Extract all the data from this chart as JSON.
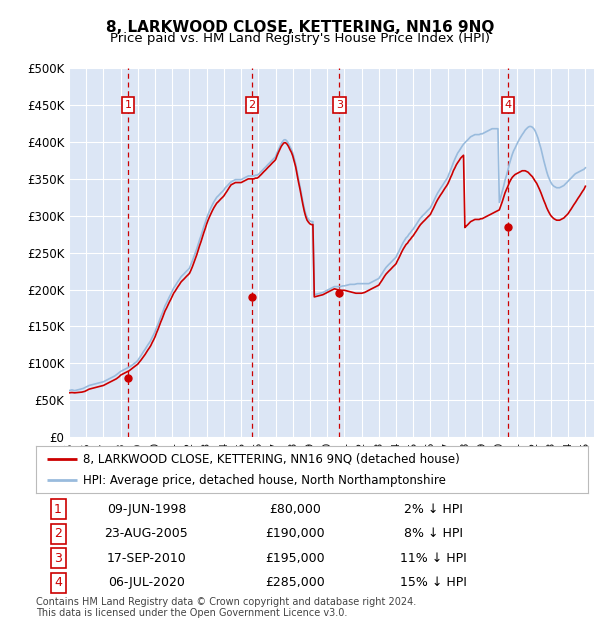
{
  "title": "8, LARKWOOD CLOSE, KETTERING, NN16 9NQ",
  "subtitle": "Price paid vs. HM Land Registry's House Price Index (HPI)",
  "ylim": [
    0,
    500000
  ],
  "yticks": [
    0,
    50000,
    100000,
    150000,
    200000,
    250000,
    300000,
    350000,
    400000,
    450000,
    500000
  ],
  "ytick_labels": [
    "£0",
    "£50K",
    "£100K",
    "£150K",
    "£200K",
    "£250K",
    "£300K",
    "£350K",
    "£400K",
    "£450K",
    "£500K"
  ],
  "xlim_start": 1995.0,
  "xlim_end": 2025.5,
  "xtick_years": [
    1995,
    1996,
    1997,
    1998,
    1999,
    2000,
    2001,
    2002,
    2003,
    2004,
    2005,
    2006,
    2007,
    2008,
    2009,
    2010,
    2011,
    2012,
    2013,
    2014,
    2015,
    2016,
    2017,
    2018,
    2019,
    2020,
    2021,
    2022,
    2023,
    2024,
    2025
  ],
  "background_color": "#dce6f5",
  "grid_color": "#ffffff",
  "sale_color": "#cc0000",
  "hpi_color": "#99bbdd",
  "transactions": [
    {
      "num": 1,
      "date": "09-JUN-1998",
      "year": 1998.44,
      "price": 80000,
      "pct": "2%",
      "dir": "↓"
    },
    {
      "num": 2,
      "date": "23-AUG-2005",
      "year": 2005.64,
      "price": 190000,
      "pct": "8%",
      "dir": "↓"
    },
    {
      "num": 3,
      "date": "17-SEP-2010",
      "year": 2010.71,
      "price": 195000,
      "pct": "11%",
      "dir": "↓"
    },
    {
      "num": 4,
      "date": "06-JUL-2020",
      "year": 2020.51,
      "price": 285000,
      "pct": "15%",
      "dir": "↓"
    }
  ],
  "hpi_x": [
    1995.0,
    1995.08,
    1995.17,
    1995.25,
    1995.33,
    1995.42,
    1995.5,
    1995.58,
    1995.67,
    1995.75,
    1995.83,
    1995.92,
    1996.0,
    1996.08,
    1996.17,
    1996.25,
    1996.33,
    1996.42,
    1996.5,
    1996.58,
    1996.67,
    1996.75,
    1996.83,
    1996.92,
    1997.0,
    1997.08,
    1997.17,
    1997.25,
    1997.33,
    1997.42,
    1997.5,
    1997.58,
    1997.67,
    1997.75,
    1997.83,
    1997.92,
    1998.0,
    1998.08,
    1998.17,
    1998.25,
    1998.33,
    1998.42,
    1998.5,
    1998.58,
    1998.67,
    1998.75,
    1998.83,
    1998.92,
    1999.0,
    1999.08,
    1999.17,
    1999.25,
    1999.33,
    1999.42,
    1999.5,
    1999.58,
    1999.67,
    1999.75,
    1999.83,
    1999.92,
    2000.0,
    2000.08,
    2000.17,
    2000.25,
    2000.33,
    2000.42,
    2000.5,
    2000.58,
    2000.67,
    2000.75,
    2000.83,
    2000.92,
    2001.0,
    2001.08,
    2001.17,
    2001.25,
    2001.33,
    2001.42,
    2001.5,
    2001.58,
    2001.67,
    2001.75,
    2001.83,
    2001.92,
    2002.0,
    2002.08,
    2002.17,
    2002.25,
    2002.33,
    2002.42,
    2002.5,
    2002.58,
    2002.67,
    2002.75,
    2002.83,
    2002.92,
    2003.0,
    2003.08,
    2003.17,
    2003.25,
    2003.33,
    2003.42,
    2003.5,
    2003.58,
    2003.67,
    2003.75,
    2003.83,
    2003.92,
    2004.0,
    2004.08,
    2004.17,
    2004.25,
    2004.33,
    2004.42,
    2004.5,
    2004.58,
    2004.67,
    2004.75,
    2004.83,
    2004.92,
    2005.0,
    2005.08,
    2005.17,
    2005.25,
    2005.33,
    2005.42,
    2005.5,
    2005.58,
    2005.67,
    2005.75,
    2005.83,
    2005.92,
    2006.0,
    2006.08,
    2006.17,
    2006.25,
    2006.33,
    2006.42,
    2006.5,
    2006.58,
    2006.67,
    2006.75,
    2006.83,
    2006.92,
    2007.0,
    2007.08,
    2007.17,
    2007.25,
    2007.33,
    2007.42,
    2007.5,
    2007.58,
    2007.67,
    2007.75,
    2007.83,
    2007.92,
    2008.0,
    2008.08,
    2008.17,
    2008.25,
    2008.33,
    2008.42,
    2008.5,
    2008.58,
    2008.67,
    2008.75,
    2008.83,
    2008.92,
    2009.0,
    2009.08,
    2009.17,
    2009.25,
    2009.33,
    2009.42,
    2009.5,
    2009.58,
    2009.67,
    2009.75,
    2009.83,
    2009.92,
    2010.0,
    2010.08,
    2010.17,
    2010.25,
    2010.33,
    2010.42,
    2010.5,
    2010.58,
    2010.67,
    2010.75,
    2010.83,
    2010.92,
    2011.0,
    2011.08,
    2011.17,
    2011.25,
    2011.33,
    2011.42,
    2011.5,
    2011.58,
    2011.67,
    2011.75,
    2011.83,
    2011.92,
    2012.0,
    2012.08,
    2012.17,
    2012.25,
    2012.33,
    2012.42,
    2012.5,
    2012.58,
    2012.67,
    2012.75,
    2012.83,
    2012.92,
    2013.0,
    2013.08,
    2013.17,
    2013.25,
    2013.33,
    2013.42,
    2013.5,
    2013.58,
    2013.67,
    2013.75,
    2013.83,
    2013.92,
    2014.0,
    2014.08,
    2014.17,
    2014.25,
    2014.33,
    2014.42,
    2014.5,
    2014.58,
    2014.67,
    2014.75,
    2014.83,
    2014.92,
    2015.0,
    2015.08,
    2015.17,
    2015.25,
    2015.33,
    2015.42,
    2015.5,
    2015.58,
    2015.67,
    2015.75,
    2015.83,
    2015.92,
    2016.0,
    2016.08,
    2016.17,
    2016.25,
    2016.33,
    2016.42,
    2016.5,
    2016.58,
    2016.67,
    2016.75,
    2016.83,
    2016.92,
    2017.0,
    2017.08,
    2017.17,
    2017.25,
    2017.33,
    2017.42,
    2017.5,
    2017.58,
    2017.67,
    2017.75,
    2017.83,
    2017.92,
    2018.0,
    2018.08,
    2018.17,
    2018.25,
    2018.33,
    2018.42,
    2018.5,
    2018.58,
    2018.67,
    2018.75,
    2018.83,
    2018.92,
    2019.0,
    2019.08,
    2019.17,
    2019.25,
    2019.33,
    2019.42,
    2019.5,
    2019.58,
    2019.67,
    2019.75,
    2019.83,
    2019.92,
    2020.0,
    2020.08,
    2020.17,
    2020.25,
    2020.33,
    2020.42,
    2020.5,
    2020.58,
    2020.67,
    2020.75,
    2020.83,
    2020.92,
    2021.0,
    2021.08,
    2021.17,
    2021.25,
    2021.33,
    2021.42,
    2021.5,
    2021.58,
    2021.67,
    2021.75,
    2021.83,
    2021.92,
    2022.0,
    2022.08,
    2022.17,
    2022.25,
    2022.33,
    2022.42,
    2022.5,
    2022.58,
    2022.67,
    2022.75,
    2022.83,
    2022.92,
    2023.0,
    2023.08,
    2023.17,
    2023.25,
    2023.33,
    2023.42,
    2023.5,
    2023.58,
    2023.67,
    2023.75,
    2023.83,
    2023.92,
    2024.0,
    2024.08,
    2024.17,
    2024.25,
    2024.33,
    2024.42,
    2024.5,
    2024.58,
    2024.67,
    2024.75,
    2024.83,
    2024.92,
    2025.0
  ],
  "hpi_y": [
    63000,
    63500,
    64000,
    63500,
    63000,
    63500,
    64000,
    64500,
    65000,
    65500,
    66000,
    67000,
    68000,
    69000,
    70000,
    70500,
    71000,
    71500,
    72000,
    72500,
    73000,
    73500,
    74000,
    74500,
    75000,
    76000,
    77000,
    78000,
    79000,
    80000,
    81000,
    82000,
    83000,
    84500,
    86000,
    87500,
    89000,
    90000,
    91000,
    92000,
    93000,
    94000,
    95000,
    96000,
    97500,
    99000,
    100500,
    102000,
    104000,
    107000,
    110000,
    113000,
    116000,
    119000,
    122000,
    125000,
    128000,
    131000,
    135000,
    139000,
    143000,
    148000,
    153000,
    158000,
    163000,
    168000,
    173000,
    178000,
    182000,
    186000,
    190000,
    194000,
    198000,
    202000,
    205000,
    208000,
    211000,
    214000,
    217000,
    219000,
    221000,
    223000,
    225000,
    227000,
    229000,
    234000,
    239000,
    244000,
    249000,
    255000,
    261000,
    267000,
    273000,
    279000,
    285000,
    291000,
    297000,
    302000,
    307000,
    311000,
    315000,
    319000,
    322000,
    325000,
    327000,
    329000,
    331000,
    333000,
    335000,
    338000,
    340000,
    342000,
    344000,
    346000,
    347000,
    348000,
    349000,
    349000,
    349000,
    349000,
    349000,
    350000,
    351000,
    352000,
    353000,
    354000,
    354000,
    354000,
    354000,
    354000,
    355000,
    355000,
    356000,
    358000,
    360000,
    362000,
    364000,
    366000,
    368000,
    370000,
    372000,
    374000,
    376000,
    378000,
    380000,
    385000,
    390000,
    394000,
    398000,
    401000,
    403000,
    403000,
    401000,
    398000,
    394000,
    390000,
    385000,
    378000,
    370000,
    360000,
    350000,
    340000,
    330000,
    320000,
    310000,
    303000,
    298000,
    295000,
    293000,
    292000,
    292000,
    193000,
    193500,
    194000,
    194500,
    195000,
    195500,
    196000,
    197000,
    198000,
    199000,
    200000,
    201000,
    202000,
    203000,
    204000,
    204000,
    204000,
    204000,
    204000,
    204500,
    205000,
    205000,
    205500,
    206000,
    206500,
    207000,
    207000,
    207000,
    207000,
    207500,
    208000,
    208000,
    208000,
    208000,
    208000,
    208000,
    208000,
    208000,
    208000,
    209000,
    210000,
    211000,
    212000,
    213000,
    214000,
    215000,
    218000,
    221000,
    224000,
    227000,
    230000,
    232000,
    234000,
    236000,
    238000,
    240000,
    242000,
    244000,
    248000,
    252000,
    256000,
    260000,
    264000,
    267000,
    270000,
    272000,
    275000,
    277000,
    280000,
    282000,
    285000,
    288000,
    291000,
    294000,
    297000,
    299000,
    301000,
    303000,
    305000,
    307000,
    309000,
    311000,
    315000,
    319000,
    323000,
    327000,
    331000,
    334000,
    337000,
    340000,
    343000,
    346000,
    349000,
    352000,
    357000,
    362000,
    367000,
    372000,
    377000,
    381000,
    385000,
    388000,
    391000,
    394000,
    397000,
    399000,
    401000,
    403000,
    405000,
    407000,
    408000,
    409000,
    410000,
    410000,
    410000,
    410000,
    411000,
    411000,
    412000,
    413000,
    414000,
    415000,
    416000,
    417000,
    418000,
    418000,
    418000,
    418000,
    418000,
    318000,
    325000,
    333000,
    340000,
    348000,
    355000,
    362000,
    370000,
    377000,
    383000,
    388000,
    392000,
    396000,
    400000,
    404000,
    407000,
    410000,
    413000,
    416000,
    418000,
    420000,
    421000,
    421000,
    420000,
    418000,
    415000,
    410000,
    405000,
    398000,
    391000,
    383000,
    375000,
    367000,
    360000,
    354000,
    349000,
    345000,
    342000,
    340000,
    339000,
    338000,
    338000,
    338000,
    339000,
    340000,
    341000,
    343000,
    345000,
    347000,
    349000,
    351000,
    353000,
    355000,
    357000,
    358000,
    359000,
    360000,
    361000,
    362000,
    363000,
    365000
  ],
  "sale_y": [
    60000,
    60200,
    60400,
    60200,
    60000,
    60200,
    60400,
    60600,
    60800,
    61000,
    61500,
    62000,
    63000,
    64000,
    65000,
    65500,
    66000,
    66500,
    67000,
    67500,
    68000,
    68500,
    69000,
    69500,
    70000,
    71000,
    72000,
    73000,
    74000,
    75000,
    76000,
    77000,
    78000,
    79000,
    80500,
    82000,
    84000,
    85000,
    86000,
    87000,
    88000,
    89000,
    90000,
    91500,
    93000,
    94500,
    96000,
    97500,
    99000,
    101500,
    104000,
    106500,
    109000,
    112000,
    115000,
    118000,
    121000,
    124000,
    128000,
    132000,
    136000,
    141000,
    146000,
    151000,
    156000,
    161000,
    166000,
    171000,
    175000,
    179000,
    183000,
    187000,
    191000,
    195000,
    198000,
    201000,
    204000,
    207000,
    210000,
    212000,
    214000,
    216000,
    218000,
    220000,
    222000,
    226000,
    231000,
    236000,
    241000,
    247000,
    253000,
    259000,
    265000,
    271000,
    277000,
    283000,
    289000,
    294000,
    299000,
    303000,
    307000,
    311000,
    314000,
    317000,
    319000,
    321000,
    323000,
    325000,
    327000,
    330000,
    333000,
    336000,
    339000,
    342000,
    343000,
    344000,
    345000,
    345000,
    345000,
    345000,
    345000,
    346000,
    347000,
    348000,
    349000,
    350000,
    350000,
    350000,
    350000,
    350000,
    351000,
    351000,
    352000,
    354000,
    356000,
    358000,
    360000,
    362000,
    364000,
    366000,
    368000,
    370000,
    372000,
    374000,
    376000,
    381000,
    386000,
    390000,
    394000,
    397000,
    399000,
    399000,
    397000,
    394000,
    390000,
    386000,
    381000,
    374000,
    366000,
    356000,
    346000,
    336000,
    326000,
    316000,
    306000,
    299000,
    294000,
    291000,
    289000,
    288000,
    288000,
    190000,
    190500,
    191000,
    191500,
    192000,
    192500,
    193000,
    194000,
    195000,
    196000,
    197000,
    198000,
    199000,
    200000,
    201000,
    200500,
    200000,
    199500,
    199000,
    199000,
    199000,
    199000,
    198500,
    198000,
    197500,
    197000,
    196500,
    196000,
    195500,
    195000,
    195000,
    195000,
    195000,
    195000,
    195500,
    196000,
    197000,
    198000,
    199000,
    200000,
    201000,
    202000,
    203000,
    204000,
    205000,
    206000,
    209000,
    212000,
    215000,
    218000,
    221000,
    223000,
    225000,
    227000,
    229000,
    231000,
    233000,
    235000,
    239000,
    243000,
    247000,
    251000,
    255000,
    258000,
    261000,
    263000,
    266000,
    268000,
    271000,
    273000,
    276000,
    279000,
    282000,
    285000,
    288000,
    290000,
    292000,
    294000,
    296000,
    298000,
    300000,
    302000,
    306000,
    310000,
    314000,
    318000,
    322000,
    325000,
    328000,
    331000,
    334000,
    337000,
    340000,
    343000,
    347000,
    352000,
    356000,
    361000,
    365000,
    369000,
    372000,
    375000,
    378000,
    380000,
    382000,
    284000,
    286000,
    288000,
    290000,
    292000,
    293000,
    294000,
    295000,
    295000,
    295000,
    295000,
    296000,
    296000,
    297000,
    298000,
    299000,
    300000,
    301000,
    302000,
    303000,
    304000,
    305000,
    306000,
    307000,
    308000,
    313000,
    319000,
    325000,
    331000,
    336000,
    340000,
    345000,
    349000,
    352000,
    354000,
    356000,
    357000,
    358000,
    359000,
    360000,
    361000,
    361000,
    361000,
    360000,
    359000,
    357000,
    355000,
    353000,
    350000,
    347000,
    344000,
    340000,
    336000,
    331000,
    326000,
    321000,
    316000,
    311000,
    307000,
    303000,
    300000,
    298000,
    296000,
    295000,
    294000,
    294000,
    294000,
    295000,
    296000,
    297000,
    299000,
    301000,
    303000,
    306000,
    309000,
    312000,
    315000,
    318000,
    321000,
    324000,
    327000,
    330000,
    333000,
    336000,
    340000
  ],
  "legend_sale_label": "8, LARKWOOD CLOSE, KETTERING, NN16 9NQ (detached house)",
  "legend_hpi_label": "HPI: Average price, detached house, North Northamptonshire",
  "footer": "Contains HM Land Registry data © Crown copyright and database right 2024.\nThis data is licensed under the Open Government Licence v3.0."
}
